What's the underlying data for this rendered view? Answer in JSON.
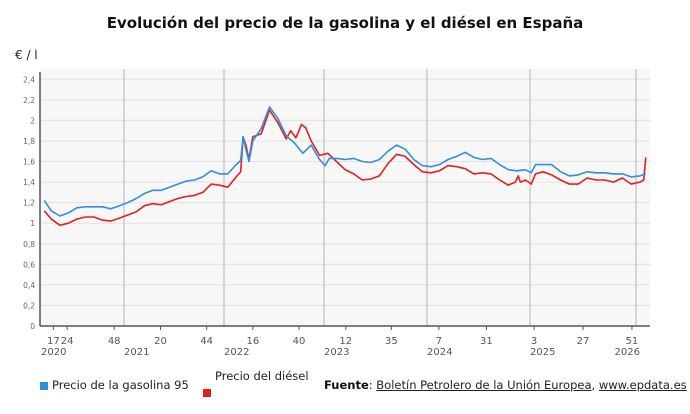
{
  "chart_data": {
    "type": "line",
    "title": "Evolución del precio de la gasolina y el diésel en España",
    "ylabel": "€ / l",
    "xlabel": "",
    "ylim": [
      0,
      2.5
    ],
    "yticks": [
      "0",
      "0,2",
      "0,4",
      "0,6",
      "0,8",
      "1",
      "1,2",
      "1,4",
      "1,6",
      "1,8",
      "2",
      "2,2",
      "2,4"
    ],
    "grid": true,
    "legend_position": "bottom-left",
    "xticks": [
      {
        "year": 2020,
        "week": 17,
        "label": "17"
      },
      {
        "year": 2020,
        "week": 24,
        "label": "24"
      },
      {
        "year": 2020,
        "week": 48,
        "label": "48"
      },
      {
        "year": 2021,
        "week": 20,
        "label": "20"
      },
      {
        "year": 2021,
        "week": 44,
        "label": "44"
      },
      {
        "year": 2022,
        "week": 16,
        "label": "16"
      },
      {
        "year": 2022,
        "week": 40,
        "label": "40"
      },
      {
        "year": 2023,
        "week": 12,
        "label": "12"
      },
      {
        "year": 2023,
        "week": 35,
        "label": "35"
      },
      {
        "year": 2024,
        "week": 7,
        "label": "7"
      },
      {
        "year": 2024,
        "week": 31,
        "label": "31"
      },
      {
        "year": 2025,
        "week": 3,
        "label": "3"
      },
      {
        "year": 2025,
        "week": 27,
        "label": "27"
      },
      {
        "year": 2025,
        "week": 51,
        "label": "51"
      }
    ],
    "year_labels": [
      "2020",
      "2021",
      "2022",
      "2023",
      "2024",
      "2025",
      "2026"
    ],
    "series": [
      {
        "name": "Precio de la gasolina 95",
        "color": "#2f8fdf",
        "points": [
          [
            "2020-03-20",
            1.22
          ],
          [
            "2020-04-15",
            1.12
          ],
          [
            "2020-05-15",
            1.07
          ],
          [
            "2020-06-15",
            1.1
          ],
          [
            "2020-07-15",
            1.15
          ],
          [
            "2020-08-15",
            1.16
          ],
          [
            "2020-09-15",
            1.16
          ],
          [
            "2020-10-15",
            1.16
          ],
          [
            "2020-11-15",
            1.14
          ],
          [
            "2020-12-15",
            1.17
          ],
          [
            "2021-01-15",
            1.2
          ],
          [
            "2021-02-15",
            1.24
          ],
          [
            "2021-03-15",
            1.29
          ],
          [
            "2021-04-15",
            1.32
          ],
          [
            "2021-05-15",
            1.32
          ],
          [
            "2021-06-15",
            1.35
          ],
          [
            "2021-07-15",
            1.38
          ],
          [
            "2021-08-15",
            1.41
          ],
          [
            "2021-09-15",
            1.42
          ],
          [
            "2021-10-15",
            1.45
          ],
          [
            "2021-11-15",
            1.51
          ],
          [
            "2021-12-15",
            1.48
          ],
          [
            "2022-01-15",
            1.48
          ],
          [
            "2022-02-15",
            1.57
          ],
          [
            "2022-03-01",
            1.61
          ],
          [
            "2022-03-10",
            1.84
          ],
          [
            "2022-03-20",
            1.72
          ],
          [
            "2022-04-01",
            1.6
          ],
          [
            "2022-04-15",
            1.8
          ],
          [
            "2022-05-15",
            1.92
          ],
          [
            "2022-06-15",
            2.13
          ],
          [
            "2022-07-15",
            2.02
          ],
          [
            "2022-08-15",
            1.85
          ],
          [
            "2022-09-15",
            1.78
          ],
          [
            "2022-10-15",
            1.68
          ],
          [
            "2022-11-15",
            1.76
          ],
          [
            "2022-12-15",
            1.62
          ],
          [
            "2023-01-05",
            1.56
          ],
          [
            "2023-01-20",
            1.63
          ],
          [
            "2023-02-15",
            1.63
          ],
          [
            "2023-03-15",
            1.62
          ],
          [
            "2023-04-15",
            1.63
          ],
          [
            "2023-05-15",
            1.6
          ],
          [
            "2023-06-15",
            1.59
          ],
          [
            "2023-07-15",
            1.62
          ],
          [
            "2023-08-15",
            1.7
          ],
          [
            "2023-09-15",
            1.76
          ],
          [
            "2023-10-15",
            1.72
          ],
          [
            "2023-11-15",
            1.62
          ],
          [
            "2023-12-15",
            1.56
          ],
          [
            "2024-01-15",
            1.55
          ],
          [
            "2024-02-15",
            1.57
          ],
          [
            "2024-03-15",
            1.62
          ],
          [
            "2024-04-15",
            1.65
          ],
          [
            "2024-05-15",
            1.69
          ],
          [
            "2024-06-15",
            1.64
          ],
          [
            "2024-07-15",
            1.62
          ],
          [
            "2024-08-15",
            1.63
          ],
          [
            "2024-09-15",
            1.57
          ],
          [
            "2024-10-15",
            1.52
          ],
          [
            "2024-11-15",
            1.51
          ],
          [
            "2024-12-15",
            1.52
          ],
          [
            "2025-01-05",
            1.49
          ],
          [
            "2025-01-20",
            1.57
          ],
          [
            "2025-02-15",
            1.57
          ],
          [
            "2025-03-15",
            1.57
          ],
          [
            "2025-04-15",
            1.5
          ],
          [
            "2025-05-15",
            1.46
          ],
          [
            "2025-06-15",
            1.47
          ],
          [
            "2025-07-15",
            1.5
          ],
          [
            "2025-08-15",
            1.49
          ],
          [
            "2025-09-15",
            1.49
          ],
          [
            "2025-10-15",
            1.48
          ],
          [
            "2025-11-15",
            1.48
          ],
          [
            "2025-12-15",
            1.45
          ],
          [
            "2026-01-15",
            1.46
          ],
          [
            "2026-02-05",
            1.48
          ]
        ]
      },
      {
        "name": "Precio del diésel",
        "color": "#e02020",
        "points": [
          [
            "2020-03-20",
            1.12
          ],
          [
            "2020-04-15",
            1.04
          ],
          [
            "2020-05-15",
            0.98
          ],
          [
            "2020-06-15",
            1.0
          ],
          [
            "2020-07-15",
            1.04
          ],
          [
            "2020-08-15",
            1.06
          ],
          [
            "2020-09-15",
            1.06
          ],
          [
            "2020-10-15",
            1.03
          ],
          [
            "2020-11-15",
            1.02
          ],
          [
            "2020-12-15",
            1.05
          ],
          [
            "2021-01-15",
            1.08
          ],
          [
            "2021-02-15",
            1.11
          ],
          [
            "2021-03-15",
            1.17
          ],
          [
            "2021-04-15",
            1.19
          ],
          [
            "2021-05-15",
            1.18
          ],
          [
            "2021-06-15",
            1.21
          ],
          [
            "2021-07-15",
            1.24
          ],
          [
            "2021-08-15",
            1.26
          ],
          [
            "2021-09-15",
            1.27
          ],
          [
            "2021-10-15",
            1.3
          ],
          [
            "2021-11-15",
            1.38
          ],
          [
            "2021-12-15",
            1.37
          ],
          [
            "2022-01-15",
            1.35
          ],
          [
            "2022-02-15",
            1.45
          ],
          [
            "2022-03-01",
            1.5
          ],
          [
            "2022-03-10",
            1.84
          ],
          [
            "2022-03-20",
            1.76
          ],
          [
            "2022-04-01",
            1.62
          ],
          [
            "2022-04-15",
            1.84
          ],
          [
            "2022-05-15",
            1.87
          ],
          [
            "2022-06-15",
            2.1
          ],
          [
            "2022-07-15",
            1.98
          ],
          [
            "2022-08-15",
            1.82
          ],
          [
            "2022-09-01",
            1.9
          ],
          [
            "2022-09-20",
            1.83
          ],
          [
            "2022-10-10",
            1.96
          ],
          [
            "2022-10-25",
            1.93
          ],
          [
            "2022-11-15",
            1.8
          ],
          [
            "2022-12-15",
            1.66
          ],
          [
            "2023-01-15",
            1.68
          ],
          [
            "2023-02-15",
            1.6
          ],
          [
            "2023-03-15",
            1.52
          ],
          [
            "2023-04-15",
            1.48
          ],
          [
            "2023-05-15",
            1.42
          ],
          [
            "2023-06-15",
            1.43
          ],
          [
            "2023-07-15",
            1.46
          ],
          [
            "2023-08-15",
            1.58
          ],
          [
            "2023-09-15",
            1.67
          ],
          [
            "2023-10-15",
            1.65
          ],
          [
            "2023-11-15",
            1.57
          ],
          [
            "2023-12-15",
            1.5
          ],
          [
            "2024-01-15",
            1.49
          ],
          [
            "2024-02-15",
            1.51
          ],
          [
            "2024-03-15",
            1.56
          ],
          [
            "2024-04-15",
            1.55
          ],
          [
            "2024-05-15",
            1.53
          ],
          [
            "2024-06-15",
            1.48
          ],
          [
            "2024-07-15",
            1.49
          ],
          [
            "2024-08-15",
            1.48
          ],
          [
            "2024-09-15",
            1.42
          ],
          [
            "2024-10-15",
            1.37
          ],
          [
            "2024-11-10",
            1.4
          ],
          [
            "2024-11-20",
            1.46
          ],
          [
            "2024-11-28",
            1.4
          ],
          [
            "2024-12-15",
            1.42
          ],
          [
            "2025-01-05",
            1.38
          ],
          [
            "2025-01-20",
            1.48
          ],
          [
            "2025-02-15",
            1.5
          ],
          [
            "2025-03-15",
            1.47
          ],
          [
            "2025-04-15",
            1.42
          ],
          [
            "2025-05-15",
            1.38
          ],
          [
            "2025-06-15",
            1.38
          ],
          [
            "2025-07-15",
            1.44
          ],
          [
            "2025-08-15",
            1.42
          ],
          [
            "2025-09-15",
            1.42
          ],
          [
            "2025-10-15",
            1.4
          ],
          [
            "2025-11-15",
            1.44
          ],
          [
            "2025-12-15",
            1.38
          ],
          [
            "2026-01-15",
            1.4
          ],
          [
            "2026-01-28",
            1.42
          ],
          [
            "2026-02-05",
            1.64
          ]
        ]
      }
    ]
  },
  "source": {
    "label": "Fuente",
    "text1": "Boletín Petrolero de la Unión Europea",
    "sep": ", ",
    "text2": "www.epdata.es"
  }
}
